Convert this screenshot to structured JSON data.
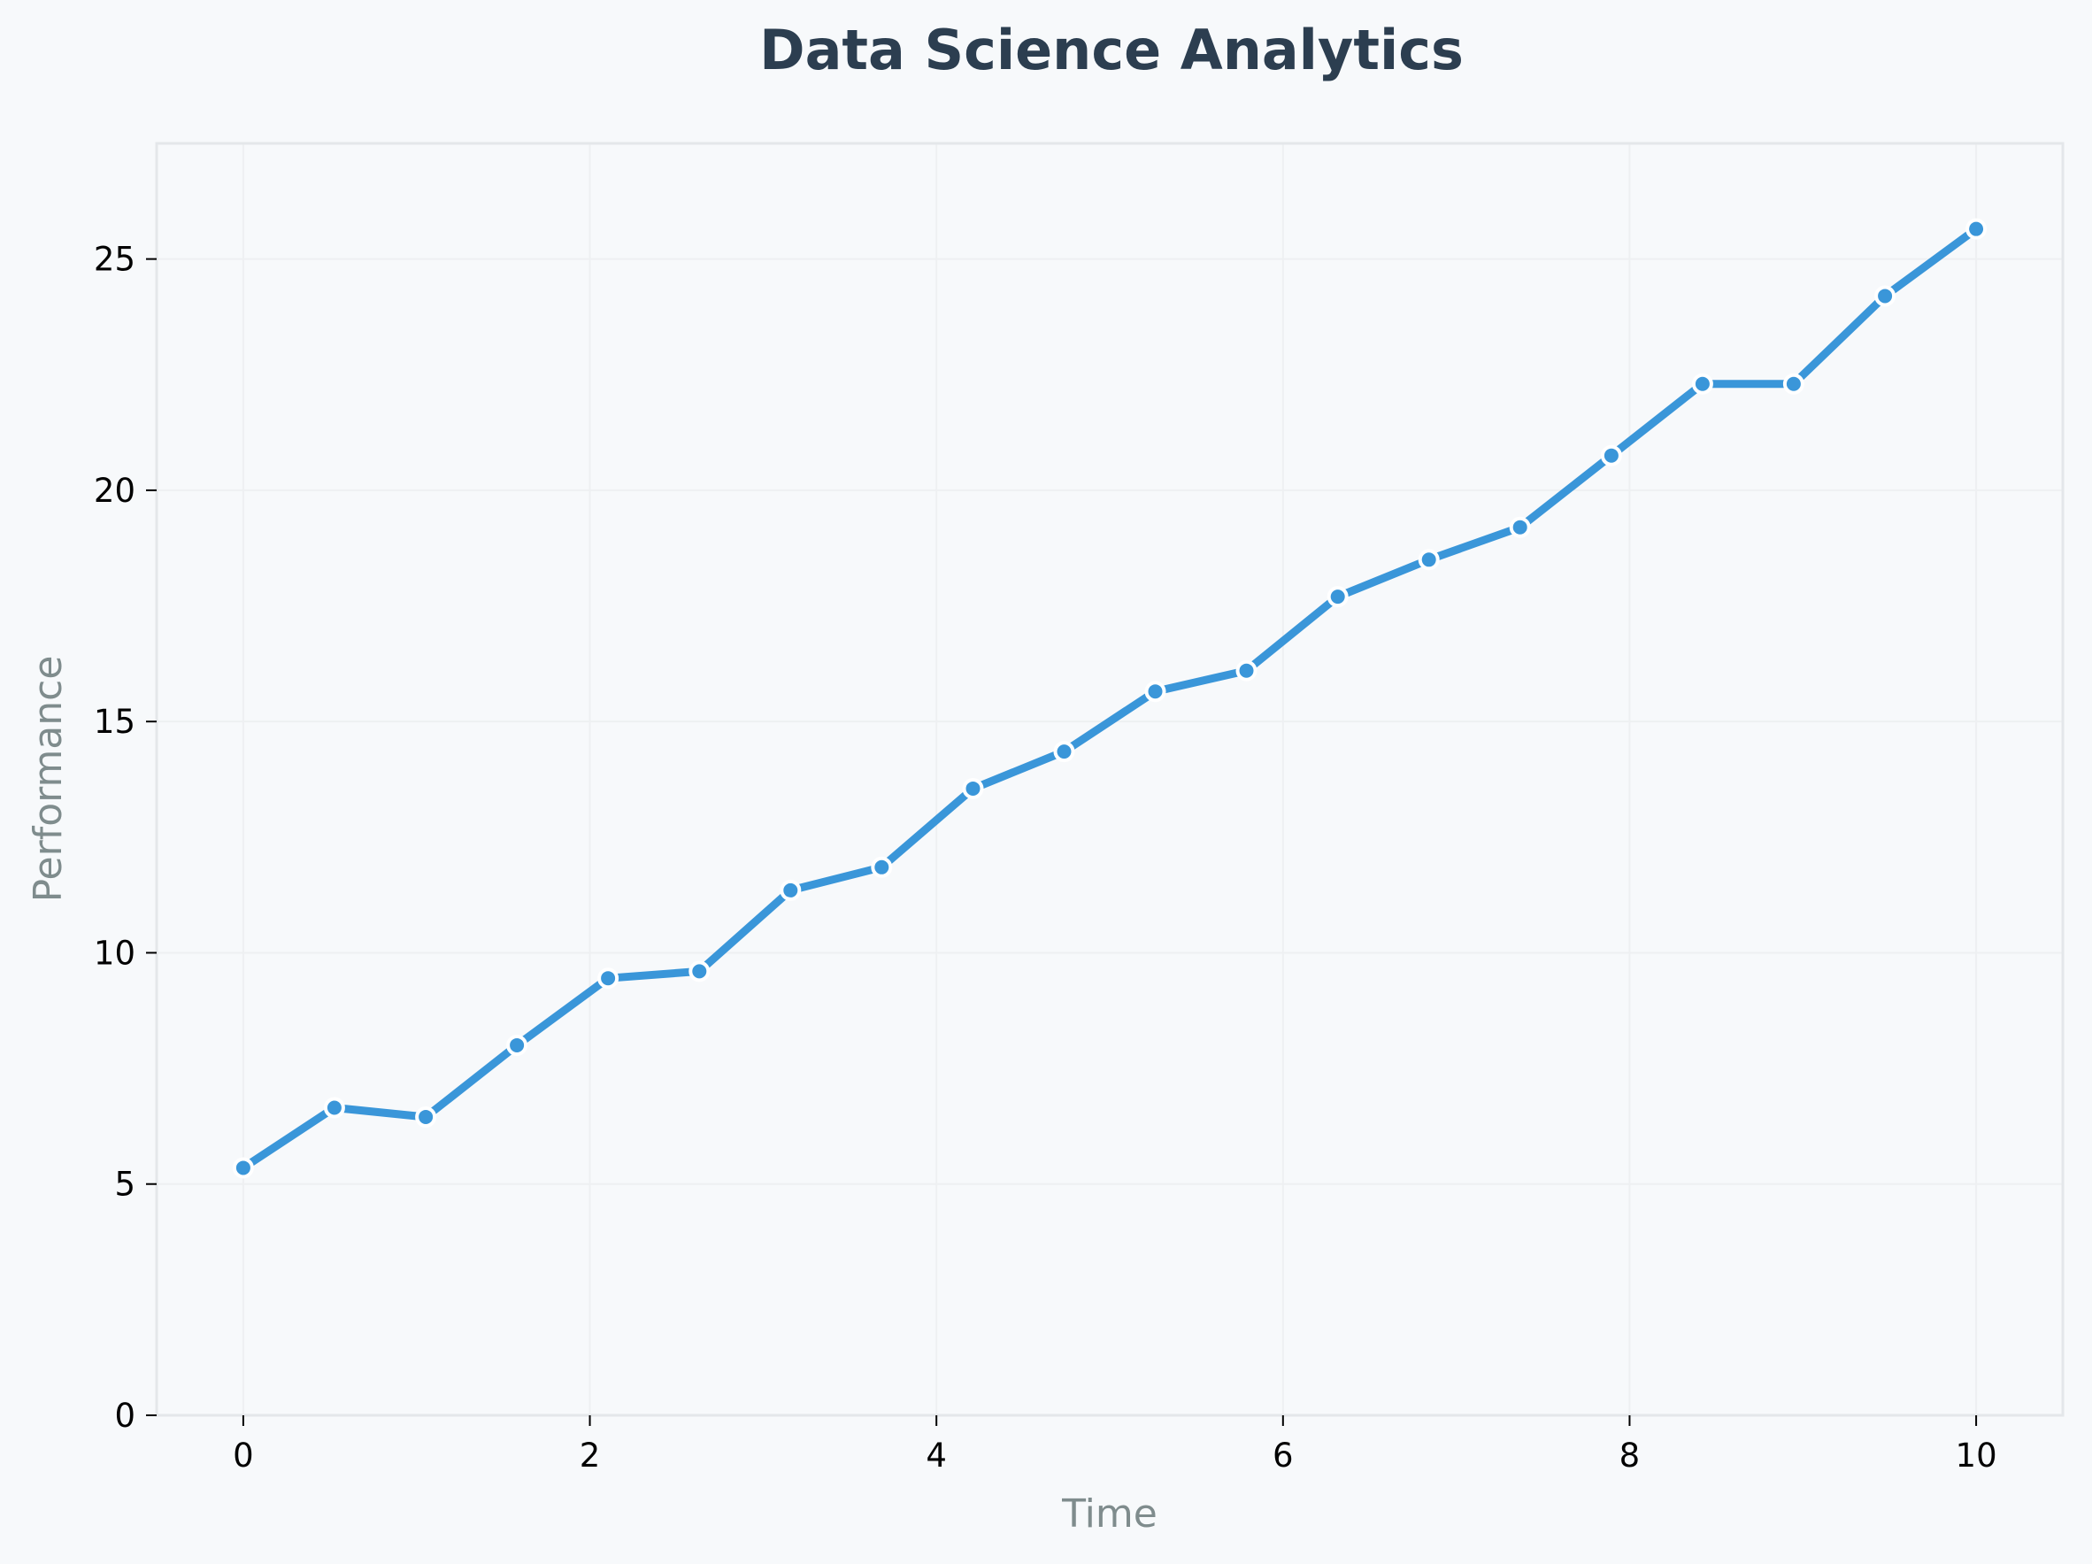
{
  "chart_data": {
    "type": "line",
    "title": "Data Science Analytics",
    "xlabel": "Time",
    "ylabel": "Performance",
    "xlim": [
      -0.5,
      10.5
    ],
    "ylim": [
      0,
      27.5
    ],
    "xticks": [
      0,
      2,
      4,
      6,
      8,
      10
    ],
    "yticks": [
      0,
      5,
      10,
      15,
      20,
      25
    ],
    "grid": true,
    "legend": "none",
    "series": [
      {
        "x": [
          0,
          0.526,
          1.053,
          1.579,
          2.105,
          2.632,
          3.158,
          3.684,
          4.211,
          4.737,
          5.263,
          5.789,
          6.316,
          6.842,
          7.368,
          7.895,
          8.421,
          8.947,
          9.474,
          10
        ],
        "values": [
          5.35,
          6.65,
          6.45,
          8.0,
          9.45,
          9.6,
          11.35,
          11.85,
          13.55,
          14.35,
          15.65,
          16.1,
          17.7,
          18.5,
          19.2,
          20.75,
          22.3,
          22.3,
          24.2,
          25.65
        ],
        "color": "#3a96d9"
      }
    ]
  },
  "colors": {
    "background": "#f7f9fb",
    "title": "#2c3e50",
    "axis_label": "#7f8c8d",
    "grid": "#eef0f2",
    "spine": "#e4e7ea",
    "marker_edge": "#ffffff"
  }
}
